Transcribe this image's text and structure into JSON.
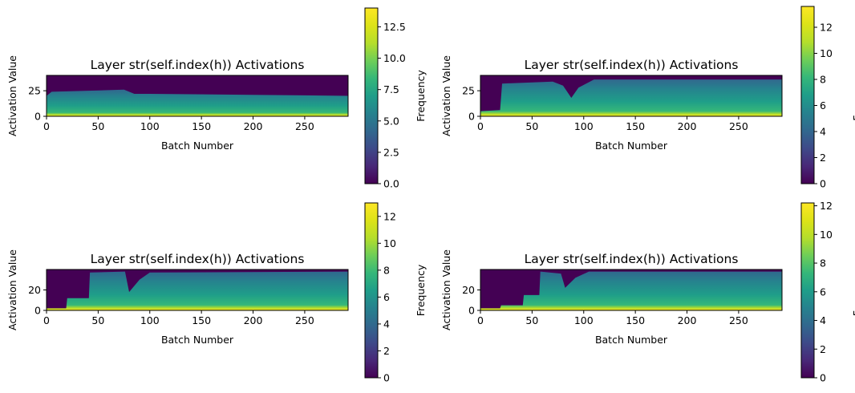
{
  "chart_data": [
    {
      "type": "heatmap",
      "title": "Layer str(self.index(h)) Activations",
      "xlabel": "Batch Number",
      "ylabel": "Activation Value",
      "colorbar_label": "Frequency",
      "colormap": "viridis",
      "xlim": [
        0,
        292
      ],
      "ylim": [
        0,
        40
      ],
      "xticks": [
        0,
        50,
        100,
        150,
        200,
        250
      ],
      "yticks": [
        0,
        25
      ],
      "clim": [
        0,
        14
      ],
      "cticks": [
        0.0,
        2.5,
        5.0,
        7.5,
        10.0,
        12.5
      ],
      "ctick_labels": [
        "0.0",
        "2.5",
        "5.0",
        "7.5",
        "10.0",
        "12.5"
      ],
      "upper_edge_points": [
        [
          0,
          20
        ],
        [
          5,
          24
        ],
        [
          75,
          26
        ],
        [
          85,
          22
        ],
        [
          100,
          22
        ],
        [
          200,
          21
        ],
        [
          292,
          20
        ]
      ]
    },
    {
      "type": "heatmap",
      "title": "Layer str(self.index(h)) Activations",
      "xlabel": "Batch Number",
      "ylabel": "Activation Value",
      "colorbar_label": "Frequency",
      "colormap": "viridis",
      "xlim": [
        0,
        292
      ],
      "ylim": [
        0,
        40
      ],
      "xticks": [
        0,
        50,
        100,
        150,
        200,
        250
      ],
      "yticks": [
        0,
        25
      ],
      "clim": [
        0,
        13.6
      ],
      "cticks": [
        0,
        2,
        4,
        6,
        8,
        10,
        12
      ],
      "ctick_labels": [
        "0",
        "2",
        "4",
        "6",
        "8",
        "10",
        "12"
      ],
      "upper_edge_points": [
        [
          0,
          5
        ],
        [
          19,
          6
        ],
        [
          21,
          32
        ],
        [
          70,
          34
        ],
        [
          80,
          30
        ],
        [
          88,
          18
        ],
        [
          95,
          28
        ],
        [
          110,
          36
        ],
        [
          292,
          36
        ]
      ]
    },
    {
      "type": "heatmap",
      "title": "Layer str(self.index(h)) Activations",
      "xlabel": "Batch Number",
      "ylabel": "Activation Value",
      "colorbar_label": "Frequency",
      "colormap": "viridis",
      "xlim": [
        0,
        292
      ],
      "ylim": [
        0,
        40
      ],
      "xticks": [
        0,
        50,
        100,
        150,
        200,
        250
      ],
      "yticks": [
        0,
        20
      ],
      "clim": [
        0,
        13
      ],
      "cticks": [
        0,
        2,
        4,
        6,
        8,
        10,
        12
      ],
      "ctick_labels": [
        "0",
        "2",
        "4",
        "6",
        "8",
        "10",
        "12"
      ],
      "upper_edge_points": [
        [
          0,
          2
        ],
        [
          19,
          2
        ],
        [
          20,
          12
        ],
        [
          41,
          12
        ],
        [
          42,
          37
        ],
        [
          76,
          38
        ],
        [
          80,
          18
        ],
        [
          90,
          30
        ],
        [
          100,
          37
        ],
        [
          292,
          38
        ]
      ]
    },
    {
      "type": "heatmap",
      "title": "Layer str(self.index(h)) Activations",
      "xlabel": "Batch Number",
      "ylabel": "Activation Value",
      "colorbar_label": "Frequency",
      "colormap": "viridis",
      "xlim": [
        0,
        292
      ],
      "ylim": [
        0,
        40
      ],
      "xticks": [
        0,
        50,
        100,
        150,
        200,
        250
      ],
      "yticks": [
        0,
        20
      ],
      "clim": [
        0,
        12.2
      ],
      "cticks": [
        0,
        2,
        4,
        6,
        8,
        10,
        12
      ],
      "ctick_labels": [
        "0",
        "2",
        "4",
        "6",
        "8",
        "10",
        "12"
      ],
      "upper_edge_points": [
        [
          0,
          2
        ],
        [
          19,
          2
        ],
        [
          20,
          5
        ],
        [
          41,
          5
        ],
        [
          42,
          15
        ],
        [
          57,
          15
        ],
        [
          58,
          38
        ],
        [
          78,
          36
        ],
        [
          82,
          22
        ],
        [
          92,
          32
        ],
        [
          105,
          38
        ],
        [
          292,
          38
        ]
      ]
    }
  ]
}
